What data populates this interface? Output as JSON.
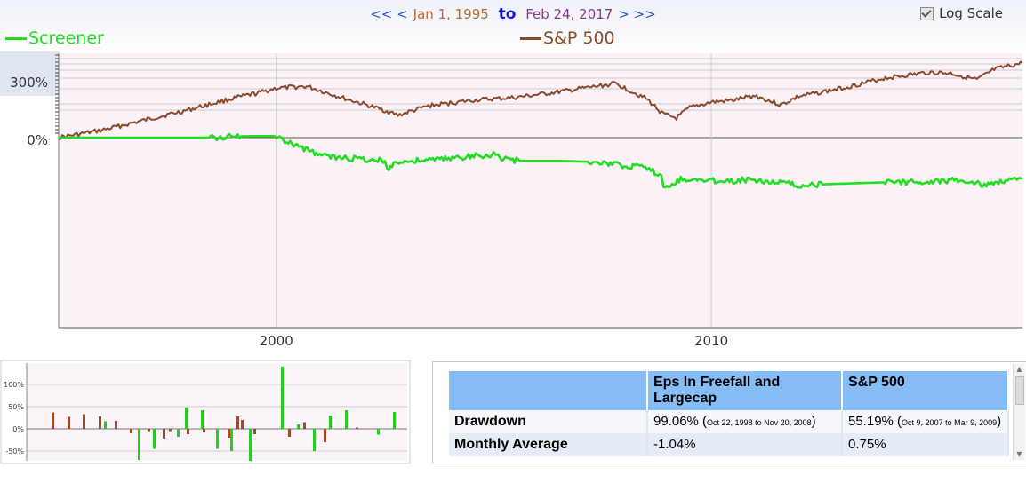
{
  "header": {
    "nav_prev": "<< <",
    "start_date": "Jan 1, 1995",
    "to_link": "to",
    "end_date": "Feb 24, 2017",
    "nav_next": "> >>",
    "log_scale_label": "Log Scale",
    "log_scale_checked": true
  },
  "legend": {
    "screener": "Screener",
    "sp500": "S&P 500",
    "screener_color": "#22dd22",
    "sp500_color": "#8b4a2b"
  },
  "chart_data": [
    {
      "type": "line",
      "title": "",
      "xlabel": "",
      "ylabel": "",
      "log_scale": true,
      "x_ticks": [
        "2000",
        "2010"
      ],
      "y_ticks": [
        "300%",
        "0%"
      ],
      "xlim": [
        1995.0,
        2017.15
      ],
      "grid": true,
      "series": [
        {
          "name": "S&P 500",
          "color": "#8b4a2b",
          "x": [
            1995.0,
            1996.0,
            1997.0,
            1998.0,
            1999.0,
            1999.6,
            2000.0,
            2000.7,
            2001.5,
            2002.5,
            2002.8,
            2003.5,
            2004.5,
            2005.5,
            2006.5,
            2007.5,
            2007.8,
            2008.5,
            2008.9,
            2009.2,
            2009.5,
            2010.0,
            2010.5,
            2011.0,
            2011.6,
            2012.0,
            2013.0,
            2014.0,
            2015.0,
            2015.5,
            2016.1,
            2016.5,
            2017.15
          ],
          "values": [
            0,
            40,
            95,
            150,
            210,
            240,
            265,
            275,
            215,
            145,
            120,
            170,
            200,
            215,
            245,
            280,
            290,
            210,
            125,
            105,
            160,
            190,
            200,
            225,
            175,
            220,
            265,
            320,
            350,
            345,
            310,
            365,
            400
          ]
        },
        {
          "name": "Screener",
          "color": "#22dd22",
          "x": [
            1995.0,
            1998.5,
            1998.8,
            1999.2,
            1999.5,
            2000.0,
            2000.2,
            2000.6,
            2001.0,
            2001.5,
            2002.0,
            2002.5,
            2002.55,
            2002.7,
            2003.2,
            2003.8,
            2004.5,
            2005.0,
            2005.1,
            2005.15,
            2005.6,
            2006.5,
            2007.2,
            2007.6,
            2008.0,
            2008.4,
            2008.7,
            2008.85,
            2008.9,
            2009.3,
            2009.8,
            2010.5,
            2011.0,
            2011.7,
            2012.1,
            2012.6,
            2013.3,
            2014.0,
            2014.8,
            2015.5,
            2016.0,
            2016.2,
            2016.6,
            2017.15
          ],
          "values": [
            0,
            0,
            1.5,
            7.5,
            8,
            8,
            -22,
            -55,
            -92,
            -110,
            -115,
            -125,
            -170,
            -135,
            -125,
            -115,
            -100,
            -90,
            -95,
            -115,
            -125,
            -125,
            -130,
            -140,
            -150,
            -160,
            -185,
            -210,
            -275,
            -220,
            -230,
            -230,
            -225,
            -245,
            -260,
            -250,
            -245,
            -240,
            -238,
            -230,
            -238,
            -255,
            -236,
            -219
          ]
        }
      ]
    },
    {
      "type": "bar",
      "title": "",
      "y_ticks": [
        "100%",
        "50%",
        "0%",
        "-50%"
      ],
      "ylim": [
        -75,
        145
      ],
      "series": [
        {
          "name": "S&P 500",
          "color": "#9a4a28",
          "values": [
            37,
            27,
            33,
            28,
            18,
            -10,
            -5,
            -22,
            -5,
            -12,
            -8,
            -20,
            28,
            20,
            -12,
            -18,
            15,
            -30,
            3
          ]
        },
        {
          "name": "Screener",
          "color": "#22cc22",
          "values": [
            17,
            -70,
            -45,
            -18,
            48,
            42,
            -45,
            -50,
            -72,
            140,
            10,
            -50,
            30,
            42,
            -13,
            38
          ]
        }
      ]
    }
  ],
  "stats_table": {
    "headers": [
      "",
      "Eps In Freefall and Largecap",
      "S&P 500"
    ],
    "rows": [
      {
        "label": "Drawdown",
        "c1_main": "99.06%",
        "c1_range": "Oct 22, 1998 to Nov 20, 2008",
        "c2_main": "55.19%",
        "c2_range": "Oct 9, 2007 to Mar 9, 2009"
      },
      {
        "label": "Monthly Average",
        "c1_main": "-1.04%",
        "c2_main": "0.75%"
      }
    ]
  }
}
